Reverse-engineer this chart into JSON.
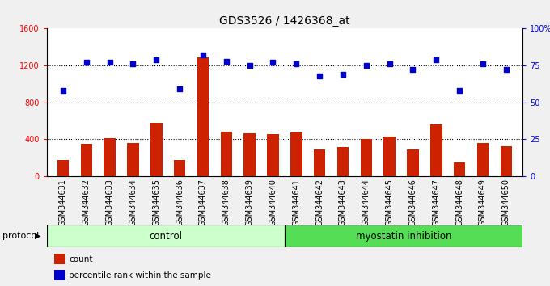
{
  "title": "GDS3526 / 1426368_at",
  "samples": [
    "GSM344631",
    "GSM344632",
    "GSM344633",
    "GSM344634",
    "GSM344635",
    "GSM344636",
    "GSM344637",
    "GSM344638",
    "GSM344639",
    "GSM344640",
    "GSM344641",
    "GSM344642",
    "GSM344643",
    "GSM344644",
    "GSM344645",
    "GSM344646",
    "GSM344647",
    "GSM344648",
    "GSM344649",
    "GSM344650"
  ],
  "counts": [
    170,
    350,
    410,
    360,
    580,
    170,
    1290,
    480,
    460,
    450,
    470,
    290,
    310,
    400,
    430,
    290,
    560,
    150,
    360,
    320
  ],
  "percentiles": [
    58,
    77,
    77,
    76,
    79,
    59,
    82,
    78,
    75,
    77,
    76,
    68,
    69,
    75,
    76,
    72,
    79,
    58,
    76,
    72
  ],
  "control_count": 10,
  "myostatin_count": 10,
  "control_color": "#ccffcc",
  "myostatin_color": "#55dd55",
  "bar_color": "#cc2200",
  "dot_color": "#0000cc",
  "left_ylim": [
    0,
    1600
  ],
  "right_ylim": [
    0,
    100
  ],
  "left_yticks": [
    0,
    400,
    800,
    1200,
    1600
  ],
  "right_yticks": [
    0,
    25,
    50,
    75,
    100
  ],
  "right_yticklabels": [
    "0",
    "25",
    "50",
    "75",
    "100%"
  ],
  "grid_values": [
    400,
    800,
    1200
  ],
  "protocol_label": "protocol",
  "control_label": "control",
  "myostatin_label": "myostatin inhibition",
  "legend_count_label": "count",
  "legend_percentile_label": "percentile rank within the sample",
  "title_fontsize": 10,
  "tick_label_fontsize": 7,
  "bar_width": 0.5
}
